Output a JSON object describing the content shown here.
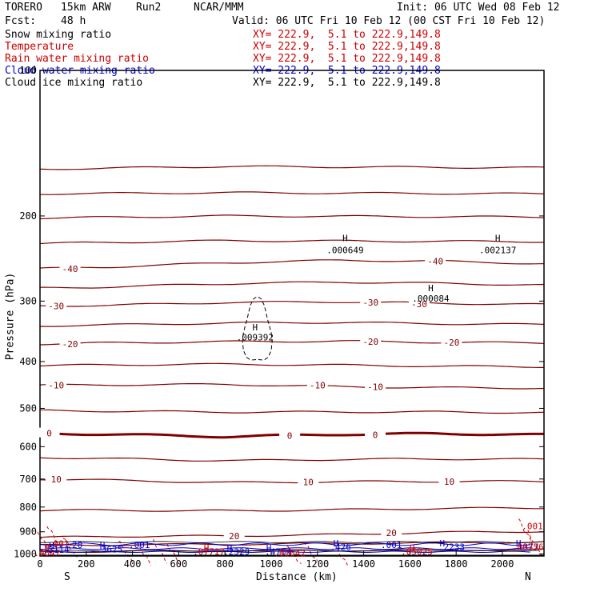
{
  "header": {
    "model": "TORERO",
    "resolution": "15km ARW",
    "run": "Run2",
    "org": "NCAR/MMM",
    "init": "Init: 06 UTC Wed 08 Feb 12",
    "fcst_label": "Fcst:",
    "fcst_value": "48 h",
    "valid": "Valid: 06 UTC Fri 10 Feb 12 (00 CST Fri 10 Feb 12)"
  },
  "legend": [
    {
      "name": "Snow mixing ratio",
      "xy": "XY= 222.9,  5.1 to 222.9,149.8",
      "color": "#000000"
    },
    {
      "name": "Temperature",
      "xy": "XY= 222.9,  5.1 to 222.9,149.8",
      "color": "#cc0000"
    },
    {
      "name": "Rain water mixing ratio",
      "xy": "XY= 222.9,  5.1 to 222.9,149.8",
      "color": "#cc0000"
    },
    {
      "name": "Cloud water mixing ratio",
      "xy": "XY= 222.9,  5.1 to 222.9,149.8",
      "color": "#0000cc"
    },
    {
      "name": "Cloud ice mixing ratio",
      "xy": "XY= 222.9,  5.1 to 222.9,149.8",
      "color": "#000000"
    }
  ],
  "colors": {
    "temperature": "#800000",
    "freezing_line": "#800000",
    "rain": "#dd0000",
    "cloud_water": "#0000cc",
    "snow": "#000000",
    "axes": "#000000"
  },
  "chart_data": {
    "type": "line",
    "xlabel": "Distance (km)",
    "ylabel": "Pressure (hPa)",
    "xlim": [
      0,
      2180
    ],
    "ylim": [
      1010,
      100
    ],
    "y_scale": "log",
    "x_ticks": [
      "0",
      "200",
      "400",
      "600",
      "800",
      "1000",
      "1200",
      "1400",
      "1600",
      "1800",
      "2000"
    ],
    "y_ticks": [
      "100",
      "200",
      "300",
      "400",
      "500",
      "600",
      "700",
      "800",
      "900",
      "1000"
    ],
    "direction_left": "S",
    "direction_right": "N",
    "temperature_contours": [
      {
        "level": -40,
        "points": [
          [
            0,
            257
          ],
          [
            300,
            255
          ],
          [
            800,
            250
          ],
          [
            1300,
            247
          ],
          [
            1700,
            248
          ],
          [
            2180,
            251
          ]
        ]
      },
      {
        "level": -30,
        "points": [
          [
            0,
            307
          ],
          [
            300,
            306
          ],
          [
            800,
            302
          ],
          [
            1300,
            301
          ],
          [
            1700,
            303
          ],
          [
            2180,
            305
          ]
        ]
      },
      {
        "level": -20,
        "points": [
          [
            0,
            368
          ],
          [
            300,
            366
          ],
          [
            800,
            364
          ],
          [
            1300,
            363
          ],
          [
            1700,
            365
          ],
          [
            2180,
            366
          ]
        ]
      },
      {
        "level": -10,
        "points": [
          [
            0,
            448
          ],
          [
            300,
            447
          ],
          [
            800,
            446
          ],
          [
            1300,
            451
          ],
          [
            1700,
            453
          ],
          [
            2180,
            454
          ]
        ]
      },
      {
        "level": 0,
        "points": [
          [
            0,
            563
          ],
          [
            300,
            566
          ],
          [
            800,
            572
          ],
          [
            1300,
            566
          ],
          [
            1700,
            564
          ],
          [
            2180,
            567
          ]
        ]
      },
      {
        "level": 10,
        "points": [
          [
            0,
            700
          ],
          [
            300,
            704
          ],
          [
            800,
            712
          ],
          [
            1300,
            709
          ],
          [
            1700,
            708
          ],
          [
            2180,
            708
          ]
        ]
      },
      {
        "level": 20,
        "points": [
          [
            0,
            925
          ],
          [
            300,
            920
          ],
          [
            800,
            918
          ],
          [
            1300,
            912
          ],
          [
            1700,
            903
          ],
          [
            2180,
            898
          ]
        ]
      }
    ],
    "contour_labels": [
      {
        "text": "-40",
        "x": 130,
        "p": 257
      },
      {
        "text": "-40",
        "x": 1710,
        "p": 248
      },
      {
        "text": "-30",
        "x": 70,
        "p": 307
      },
      {
        "text": "-30",
        "x": 1430,
        "p": 302
      },
      {
        "text": "-30",
        "x": 1640,
        "p": 304
      },
      {
        "text": "-20",
        "x": 130,
        "p": 368
      },
      {
        "text": "-20",
        "x": 1430,
        "p": 364
      },
      {
        "text": "-20",
        "x": 1780,
        "p": 365
      },
      {
        "text": "-10",
        "x": 70,
        "p": 448
      },
      {
        "text": "-10",
        "x": 1200,
        "p": 448
      },
      {
        "text": "-10",
        "x": 1450,
        "p": 451
      },
      {
        "text": "0",
        "x": 40,
        "p": 563
      },
      {
        "text": "0",
        "x": 1080,
        "p": 569
      },
      {
        "text": "0",
        "x": 1450,
        "p": 567
      },
      {
        "text": "10",
        "x": 70,
        "p": 700
      },
      {
        "text": "10",
        "x": 1160,
        "p": 710
      },
      {
        "text": "10",
        "x": 1770,
        "p": 708
      },
      {
        "text": "20",
        "x": 840,
        "p": 918
      },
      {
        "text": "20",
        "x": 1520,
        "p": 905
      }
    ],
    "cloud_ice_region": {
      "x": [
        880,
        1000
      ],
      "p": [
        300,
        405
      ]
    },
    "maxima_labels": [
      {
        "text": "H",
        "x": 930,
        "p": 340,
        "color": "#000000"
      },
      {
        "text": ".009392",
        "x": 930,
        "p": 356,
        "color": "#000000"
      },
      {
        "text": "H",
        "x": 1320,
        "p": 222,
        "color": "#000000"
      },
      {
        "text": ".000649",
        "x": 1320,
        "p": 235,
        "color": "#000000"
      },
      {
        "text": "H",
        "x": 1690,
        "p": 282,
        "color": "#000000"
      },
      {
        "text": ".000084",
        "x": 1690,
        "p": 296,
        "color": "#000000"
      },
      {
        "text": "H",
        "x": 1980,
        "p": 222,
        "color": "#000000"
      },
      {
        "text": ".002137",
        "x": 1980,
        "p": 235,
        "color": "#000000"
      },
      {
        "text": "H",
        "x": 30,
        "p": 969,
        "color": "#cc0000"
      },
      {
        "text": ".0647",
        "x": 30,
        "p": 994,
        "color": "#cc0000"
      },
      {
        "text": ".001",
        "x": 80,
        "p": 952,
        "color": "#cc0000"
      },
      {
        "text": "H",
        "x": 50,
        "p": 961,
        "color": "#0000cc"
      },
      {
        "text": ".3114",
        "x": 70,
        "p": 980,
        "color": "#0000cc"
      },
      {
        "text": ".20",
        "x": 150,
        "p": 958,
        "color": "#0000cc"
      },
      {
        "text": "H",
        "x": 270,
        "p": 961,
        "color": "#0000cc"
      },
      {
        "text": ".3625",
        "x": 300,
        "p": 978,
        "color": "#0000cc"
      },
      {
        "text": ".001",
        "x": 430,
        "p": 958,
        "color": "#0000cc"
      },
      {
        "text": "H",
        "x": 720,
        "p": 972,
        "color": "#cc0000"
      },
      {
        "text": ".07717",
        "x": 730,
        "p": 989,
        "color": "#cc0000"
      },
      {
        "text": "H",
        "x": 820,
        "p": 972,
        "color": "#0000cc"
      },
      {
        "text": ".2329",
        "x": 850,
        "p": 989,
        "color": "#0000cc"
      },
      {
        "text": "H",
        "x": 990,
        "p": 972,
        "color": "#0000cc"
      },
      {
        "text": ".4764",
        "x": 1030,
        "p": 989,
        "color": "#0000cc"
      },
      {
        "text": ".02642",
        "x": 1080,
        "p": 996,
        "color": "#cc0000"
      },
      {
        "text": "H",
        "x": 1280,
        "p": 950,
        "color": "#0000cc"
      },
      {
        "text": ".426",
        "x": 1300,
        "p": 966,
        "color": "#0000cc"
      },
      {
        "text": ".001",
        "x": 1520,
        "p": 958,
        "color": "#0000cc"
      },
      {
        "text": "H",
        "x": 1610,
        "p": 972,
        "color": "#cc0000"
      },
      {
        "text": ".05025",
        "x": 1630,
        "p": 989,
        "color": "#cc0000"
      },
      {
        "text": "H",
        "x": 1740,
        "p": 950,
        "color": "#0000cc"
      },
      {
        "text": ".2233",
        "x": 1780,
        "p": 966,
        "color": "#0000cc"
      },
      {
        "text": "H",
        "x": 2070,
        "p": 950,
        "color": "#0000cc"
      },
      {
        "text": ".1377",
        "x": 2100,
        "p": 966,
        "color": "#0000cc"
      },
      {
        "text": ".001",
        "x": 2130,
        "p": 875,
        "color": "#cc0000"
      },
      {
        "text": ".00356",
        "x": 2110,
        "p": 966,
        "color": "#cc0000"
      }
    ]
  }
}
